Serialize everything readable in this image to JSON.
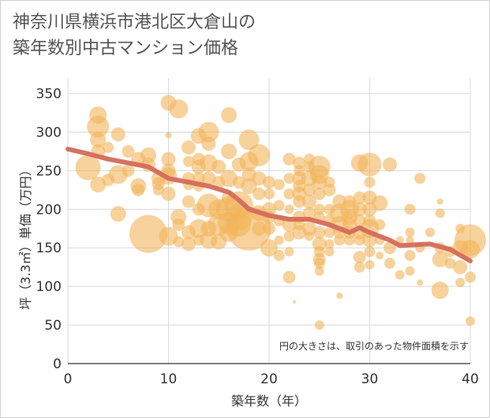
{
  "title_lines": [
    "神奈川県横浜市港北区大倉山の",
    "築年数別中古マンション価格"
  ],
  "chart_data": {
    "type": "scatter",
    "xlabel": "築年数（年）",
    "ylabel": "坪（3.3㎡）単価（万円）",
    "xlim": [
      0,
      40
    ],
    "ylim": [
      0,
      370
    ],
    "xticks": [
      "0",
      "10",
      "20",
      "30",
      "40"
    ],
    "yticks": [
      "0",
      "50",
      "100",
      "150",
      "200",
      "250",
      "300",
      "350"
    ],
    "grid": true,
    "note": "円の大きさは、取引のあった物件面積を示す",
    "bubble_color": "#f2b45a",
    "line_color": "#d46a5a",
    "points": [
      [
        2,
        254,
        16
      ],
      [
        3,
        322,
        11
      ],
      [
        3,
        307,
        14
      ],
      [
        3,
        290,
        10
      ],
      [
        3,
        275,
        9
      ],
      [
        4,
        280,
        7
      ],
      [
        3,
        232,
        10
      ],
      [
        4,
        238,
        8
      ],
      [
        5,
        245,
        12
      ],
      [
        6,
        250,
        8
      ],
      [
        5,
        194,
        10
      ],
      [
        6,
        275,
        8
      ],
      [
        5,
        297,
        9
      ],
      [
        7,
        265,
        9
      ],
      [
        7,
        230,
        10
      ],
      [
        7,
        225,
        8
      ],
      [
        8,
        270,
        10
      ],
      [
        8,
        258,
        9
      ],
      [
        8,
        168,
        24
      ],
      [
        9,
        240,
        9
      ],
      [
        9,
        233,
        8
      ],
      [
        9,
        225,
        7
      ],
      [
        10,
        338,
        10
      ],
      [
        10,
        296,
        4
      ],
      [
        10,
        265,
        9
      ],
      [
        10,
        250,
        9
      ],
      [
        10,
        243,
        11
      ],
      [
        10,
        220,
        9
      ],
      [
        10,
        165,
        12
      ],
      [
        11,
        330,
        12
      ],
      [
        11,
        190,
        10
      ],
      [
        11,
        180,
        8
      ],
      [
        11,
        158,
        7
      ],
      [
        12,
        280,
        9
      ],
      [
        12,
        262,
        7
      ],
      [
        12,
        240,
        8
      ],
      [
        12,
        232,
        7
      ],
      [
        12,
        210,
        8
      ],
      [
        12,
        170,
        9
      ],
      [
        12,
        155,
        9
      ],
      [
        13,
        295,
        10
      ],
      [
        13,
        265,
        8
      ],
      [
        13,
        255,
        9
      ],
      [
        13,
        240,
        8
      ],
      [
        13,
        230,
        7
      ],
      [
        13,
        200,
        8
      ],
      [
        13,
        175,
        12
      ],
      [
        13,
        160,
        7
      ],
      [
        14,
        300,
        13
      ],
      [
        14,
        285,
        9
      ],
      [
        14,
        260,
        11
      ],
      [
        14,
        240,
        9
      ],
      [
        14,
        205,
        15
      ],
      [
        14,
        175,
        10
      ],
      [
        14,
        160,
        11
      ],
      [
        15,
        255,
        9
      ],
      [
        15,
        235,
        8
      ],
      [
        15,
        200,
        13
      ],
      [
        15,
        180,
        14
      ],
      [
        15,
        158,
        10
      ],
      [
        16,
        322,
        10
      ],
      [
        16,
        275,
        10
      ],
      [
        16,
        240,
        11
      ],
      [
        16,
        215,
        9
      ],
      [
        16,
        200,
        16
      ],
      [
        16,
        182,
        14
      ],
      [
        16,
        170,
        12
      ],
      [
        17,
        258,
        9
      ],
      [
        17,
        235,
        8
      ],
      [
        17,
        205,
        18
      ],
      [
        17,
        190,
        17
      ],
      [
        17,
        180,
        15
      ],
      [
        18,
        290,
        13
      ],
      [
        18,
        262,
        12
      ],
      [
        18,
        245,
        9
      ],
      [
        18,
        230,
        10
      ],
      [
        18,
        175,
        28
      ],
      [
        19,
        270,
        14
      ],
      [
        19,
        240,
        9
      ],
      [
        19,
        220,
        8
      ],
      [
        19,
        195,
        10
      ],
      [
        19,
        175,
        9
      ],
      [
        20,
        235,
        8
      ],
      [
        20,
        220,
        7
      ],
      [
        20,
        200,
        9
      ],
      [
        20,
        190,
        8
      ],
      [
        20,
        175,
        8
      ],
      [
        20,
        150,
        11
      ],
      [
        21,
        232,
        7
      ],
      [
        21,
        205,
        7
      ],
      [
        21,
        185,
        7
      ],
      [
        21,
        160,
        6
      ],
      [
        21,
        140,
        7
      ],
      [
        22,
        265,
        8
      ],
      [
        22,
        240,
        7
      ],
      [
        22,
        220,
        7
      ],
      [
        22,
        200,
        6
      ],
      [
        22,
        180,
        9
      ],
      [
        22,
        165,
        7
      ],
      [
        22,
        145,
        6
      ],
      [
        22,
        112,
        8
      ],
      [
        22.5,
        80,
        2
      ],
      [
        23,
        260,
        8
      ],
      [
        23,
        250,
        7
      ],
      [
        23,
        240,
        9
      ],
      [
        23,
        230,
        8
      ],
      [
        23,
        220,
        9
      ],
      [
        23,
        210,
        8
      ],
      [
        23,
        190,
        8
      ],
      [
        23,
        180,
        7
      ],
      [
        23,
        170,
        9
      ],
      [
        24,
        265,
        7
      ],
      [
        24,
        255,
        7
      ],
      [
        24,
        240,
        10
      ],
      [
        24,
        225,
        8
      ],
      [
        24,
        210,
        9
      ],
      [
        24,
        195,
        8
      ],
      [
        24,
        175,
        9
      ],
      [
        24,
        165,
        6
      ],
      [
        25,
        255,
        14
      ],
      [
        25,
        245,
        12
      ],
      [
        25,
        235,
        9
      ],
      [
        25,
        220,
        8
      ],
      [
        25,
        200,
        7
      ],
      [
        25,
        190,
        7
      ],
      [
        25,
        170,
        8
      ],
      [
        25,
        155,
        9
      ],
      [
        25,
        145,
        7
      ],
      [
        25,
        135,
        8
      ],
      [
        25,
        130,
        7
      ],
      [
        25,
        120,
        6
      ],
      [
        25,
        50,
        6
      ],
      [
        26,
        235,
        7
      ],
      [
        26,
        225,
        8
      ],
      [
        26,
        200,
        7
      ],
      [
        26,
        185,
        8
      ],
      [
        26,
        170,
        7
      ],
      [
        26,
        155,
        6
      ],
      [
        26,
        145,
        6
      ],
      [
        27,
        210,
        9
      ],
      [
        27,
        195,
        12
      ],
      [
        27,
        180,
        11
      ],
      [
        27,
        170,
        8
      ],
      [
        27,
        160,
        7
      ],
      [
        27,
        88,
        4
      ],
      [
        28,
        210,
        8
      ],
      [
        28,
        200,
        12
      ],
      [
        28,
        190,
        10
      ],
      [
        28,
        180,
        9
      ],
      [
        28,
        170,
        8
      ],
      [
        28,
        160,
        7
      ],
      [
        29,
        260,
        11
      ],
      [
        29,
        215,
        8
      ],
      [
        29,
        200,
        9
      ],
      [
        29,
        185,
        8
      ],
      [
        29,
        170,
        9
      ],
      [
        29,
        160,
        7
      ],
      [
        29,
        138,
        8
      ],
      [
        29,
        125,
        7
      ],
      [
        30,
        258,
        15
      ],
      [
        30,
        235,
        7
      ],
      [
        30,
        215,
        9
      ],
      [
        30,
        200,
        9
      ],
      [
        30,
        185,
        8
      ],
      [
        30,
        175,
        12
      ],
      [
        30,
        160,
        9
      ],
      [
        30,
        145,
        7
      ],
      [
        30,
        128,
        6
      ],
      [
        31,
        208,
        10
      ],
      [
        31,
        180,
        7
      ],
      [
        31,
        160,
        6
      ],
      [
        31,
        140,
        5
      ],
      [
        32,
        258,
        9
      ],
      [
        32,
        150,
        8
      ],
      [
        32,
        130,
        7
      ],
      [
        33,
        160,
        5
      ],
      [
        33,
        115,
        6
      ],
      [
        34,
        200,
        7
      ],
      [
        34,
        170,
        6
      ],
      [
        34,
        160,
        5
      ],
      [
        34,
        140,
        7
      ],
      [
        34,
        120,
        6
      ],
      [
        35,
        240,
        7
      ],
      [
        35,
        150,
        6
      ],
      [
        35,
        105,
        4
      ],
      [
        36,
        170,
        6
      ],
      [
        37,
        210,
        4
      ],
      [
        37,
        195,
        6
      ],
      [
        37,
        150,
        7
      ],
      [
        37,
        135,
        10
      ],
      [
        37,
        95,
        11
      ],
      [
        38,
        145,
        7
      ],
      [
        38,
        130,
        7
      ],
      [
        39,
        175,
        6
      ],
      [
        39,
        150,
        10
      ],
      [
        39,
        125,
        9
      ],
      [
        39,
        105,
        6
      ],
      [
        40,
        160,
        20
      ],
      [
        40,
        148,
        12
      ],
      [
        40,
        112,
        7
      ],
      [
        40,
        55,
        6
      ]
    ],
    "trend": [
      [
        0,
        278
      ],
      [
        2,
        272
      ],
      [
        4,
        265
      ],
      [
        6,
        260
      ],
      [
        8,
        255
      ],
      [
        10,
        240
      ],
      [
        12,
        235
      ],
      [
        14,
        230
      ],
      [
        16,
        222
      ],
      [
        17,
        212
      ],
      [
        18,
        200
      ],
      [
        20,
        192
      ],
      [
        22,
        187
      ],
      [
        24,
        187
      ],
      [
        26,
        180
      ],
      [
        28,
        170
      ],
      [
        29,
        176
      ],
      [
        30,
        170
      ],
      [
        32,
        160
      ],
      [
        33,
        153
      ],
      [
        36,
        155
      ],
      [
        38,
        148
      ],
      [
        40,
        133
      ]
    ]
  }
}
